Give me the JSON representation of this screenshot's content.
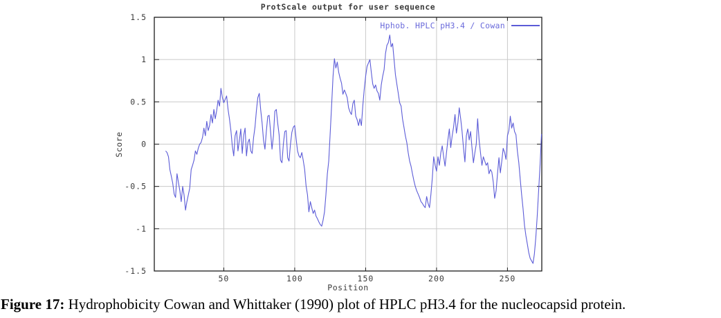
{
  "title": "ProtScale output for user sequence",
  "legend_label": "Hphob. HPLC pH3.4 / Cowan",
  "caption": {
    "label": "Figure 17:",
    "text": " Hydrophobicity Cowan and Whittaker (1990) plot of HPLC pH3.4 for the nucleocapsid protein."
  },
  "colors": {
    "line": "#5b5bd7",
    "legend_text": "#6b6bdb",
    "grid": "#c9c9c9",
    "border": "#1a1a1a",
    "tick_text": "#3b3b3b"
  },
  "chart_data": {
    "type": "line",
    "title": "ProtScale output for user sequence",
    "xlabel": "Position",
    "ylabel": "Score",
    "xlim": [
      1,
      274.2
    ],
    "ylim": [
      -1.5,
      1.5
    ],
    "grid": true,
    "legend_position": "top-right-inside",
    "x_ticks": [
      {
        "v": 50,
        "label": "50"
      },
      {
        "v": 100,
        "label": "100"
      },
      {
        "v": 150,
        "label": "150"
      },
      {
        "v": 200,
        "label": "200"
      },
      {
        "v": 250,
        "label": "250"
      }
    ],
    "y_ticks": [
      {
        "v": 1.5,
        "label": "1.5"
      },
      {
        "v": 1,
        "label": "1"
      },
      {
        "v": 0.5,
        "label": "0.5"
      },
      {
        "v": 0,
        "label": "0"
      },
      {
        "v": -0.5,
        "label": "-0.5"
      },
      {
        "v": -1,
        "label": "-1"
      },
      {
        "v": -1.5,
        "label": "-1.5"
      }
    ],
    "series": [
      {
        "name": "Hphob. HPLC pH3.4 / Cowan",
        "color": "#5b5bd7",
        "points": [
          [
            9,
            -0.08
          ],
          [
            10,
            -0.1
          ],
          [
            11,
            -0.15
          ],
          [
            12,
            -0.3
          ],
          [
            13,
            -0.38
          ],
          [
            14,
            -0.46
          ],
          [
            15,
            -0.59
          ],
          [
            16,
            -0.63
          ],
          [
            17,
            -0.35
          ],
          [
            18,
            -0.45
          ],
          [
            19,
            -0.55
          ],
          [
            20,
            -0.68
          ],
          [
            21,
            -0.5
          ],
          [
            22,
            -0.6
          ],
          [
            23,
            -0.78
          ],
          [
            24,
            -0.68
          ],
          [
            25,
            -0.6
          ],
          [
            26,
            -0.52
          ],
          [
            27,
            -0.3
          ],
          [
            28,
            -0.25
          ],
          [
            29,
            -0.19
          ],
          [
            30,
            -0.08
          ],
          [
            31,
            -0.12
          ],
          [
            32,
            -0.05
          ],
          [
            33,
            0
          ],
          [
            34,
            0.02
          ],
          [
            35,
            0.08
          ],
          [
            36,
            0.19
          ],
          [
            37,
            0.1
          ],
          [
            38,
            0.27
          ],
          [
            39,
            0.16
          ],
          [
            40,
            0.22
          ],
          [
            41,
            0.35
          ],
          [
            42,
            0.25
          ],
          [
            43,
            0.41
          ],
          [
            44,
            0.3
          ],
          [
            45,
            0.4
          ],
          [
            46,
            0.52
          ],
          [
            47,
            0.45
          ],
          [
            48,
            0.66
          ],
          [
            49,
            0.55
          ],
          [
            50,
            0.49
          ],
          [
            51,
            0.53
          ],
          [
            52,
            0.57
          ],
          [
            53,
            0.41
          ],
          [
            54,
            0.3
          ],
          [
            55,
            0.16
          ],
          [
            56,
            -0.02
          ],
          [
            57,
            -0.14
          ],
          [
            58,
            0.1
          ],
          [
            59,
            0.16
          ],
          [
            60,
            -0.08
          ],
          [
            61,
            0.05
          ],
          [
            62,
            0.18
          ],
          [
            63,
            -0.11
          ],
          [
            64,
            0.1
          ],
          [
            65,
            0.19
          ],
          [
            66,
            -0.14
          ],
          [
            67,
            0.02
          ],
          [
            68,
            0.06
          ],
          [
            69,
            -0.08
          ],
          [
            70,
            -0.11
          ],
          [
            71,
            0.08
          ],
          [
            72,
            0.2
          ],
          [
            73,
            0.4
          ],
          [
            74,
            0.55
          ],
          [
            75,
            0.6
          ],
          [
            76,
            0.41
          ],
          [
            77,
            0.25
          ],
          [
            78,
            0.05
          ],
          [
            79,
            -0.06
          ],
          [
            80,
            0.15
          ],
          [
            81,
            0.33
          ],
          [
            82,
            0.34
          ],
          [
            83,
            0.14
          ],
          [
            84,
            -0.06
          ],
          [
            85,
            0.1
          ],
          [
            86,
            0.39
          ],
          [
            87,
            0.41
          ],
          [
            88,
            0.25
          ],
          [
            89,
            0.11
          ],
          [
            90,
            -0.19
          ],
          [
            91,
            -0.22
          ],
          [
            92,
            0
          ],
          [
            93,
            0.15
          ],
          [
            94,
            0.16
          ],
          [
            95,
            -0.16
          ],
          [
            96,
            -0.2
          ],
          [
            97,
            0
          ],
          [
            98,
            0.14
          ],
          [
            99,
            0.2
          ],
          [
            100,
            0.22
          ],
          [
            101,
            0.06
          ],
          [
            102,
            -0.08
          ],
          [
            103,
            -0.14
          ],
          [
            104,
            -0.16
          ],
          [
            105,
            -0.1
          ],
          [
            106,
            -0.19
          ],
          [
            107,
            -0.3
          ],
          [
            108,
            -0.49
          ],
          [
            109,
            -0.6
          ],
          [
            110,
            -0.8
          ],
          [
            111,
            -0.68
          ],
          [
            112,
            -0.75
          ],
          [
            113,
            -0.82
          ],
          [
            114,
            -0.78
          ],
          [
            115,
            -0.85
          ],
          [
            116,
            -0.88
          ],
          [
            117,
            -0.92
          ],
          [
            118,
            -0.95
          ],
          [
            119,
            -0.97
          ],
          [
            120,
            -0.9
          ],
          [
            121,
            -0.8
          ],
          [
            122,
            -0.6
          ],
          [
            123,
            -0.35
          ],
          [
            124,
            -0.2
          ],
          [
            125,
            0.13
          ],
          [
            126,
            0.45
          ],
          [
            127,
            0.8
          ],
          [
            128,
            1.01
          ],
          [
            129,
            0.9
          ],
          [
            130,
            0.97
          ],
          [
            131,
            0.85
          ],
          [
            132,
            0.78
          ],
          [
            133,
            0.72
          ],
          [
            134,
            0.59
          ],
          [
            135,
            0.64
          ],
          [
            136,
            0.6
          ],
          [
            137,
            0.55
          ],
          [
            138,
            0.43
          ],
          [
            139,
            0.38
          ],
          [
            140,
            0.35
          ],
          [
            141,
            0.48
          ],
          [
            142,
            0.52
          ],
          [
            143,
            0.33
          ],
          [
            144,
            0.29
          ],
          [
            145,
            0.22
          ],
          [
            146,
            0.3
          ],
          [
            147,
            0.22
          ],
          [
            148,
            0.45
          ],
          [
            149,
            0.65
          ],
          [
            150,
            0.8
          ],
          [
            151,
            0.92
          ],
          [
            152,
            0.96
          ],
          [
            153,
            1
          ],
          [
            154,
            0.85
          ],
          [
            155,
            0.71
          ],
          [
            156,
            0.66
          ],
          [
            157,
            0.7
          ],
          [
            158,
            0.63
          ],
          [
            159,
            0.6
          ],
          [
            160,
            0.52
          ],
          [
            161,
            0.7
          ],
          [
            162,
            0.8
          ],
          [
            163,
            0.88
          ],
          [
            164,
            1.07
          ],
          [
            165,
            1.17
          ],
          [
            166,
            1.2
          ],
          [
            167,
            1.29
          ],
          [
            168,
            1.15
          ],
          [
            169,
            1.19
          ],
          [
            170,
            1.01
          ],
          [
            171,
            0.82
          ],
          [
            172,
            0.71
          ],
          [
            173,
            0.6
          ],
          [
            174,
            0.49
          ],
          [
            175,
            0.45
          ],
          [
            176,
            0.3
          ],
          [
            177,
            0.2
          ],
          [
            178,
            0.1
          ],
          [
            179,
            0.02
          ],
          [
            180,
            -0.1
          ],
          [
            181,
            -0.2
          ],
          [
            182,
            -0.26
          ],
          [
            183,
            -0.35
          ],
          [
            184,
            -0.43
          ],
          [
            185,
            -0.5
          ],
          [
            186,
            -0.55
          ],
          [
            187,
            -0.59
          ],
          [
            188,
            -0.63
          ],
          [
            189,
            -0.68
          ],
          [
            190,
            -0.7
          ],
          [
            191,
            -0.73
          ],
          [
            192,
            -0.75
          ],
          [
            193,
            -0.62
          ],
          [
            194,
            -0.7
          ],
          [
            195,
            -0.75
          ],
          [
            196,
            -0.6
          ],
          [
            197,
            -0.4
          ],
          [
            198,
            -0.15
          ],
          [
            199,
            -0.25
          ],
          [
            200,
            -0.32
          ],
          [
            201,
            -0.15
          ],
          [
            202,
            -0.25
          ],
          [
            203,
            -0.1
          ],
          [
            204,
            -0.02
          ],
          [
            205,
            -0.15
          ],
          [
            206,
            -0.26
          ],
          [
            207,
            -0.1
          ],
          [
            208,
            0.05
          ],
          [
            209,
            0.18
          ],
          [
            210,
            -0.04
          ],
          [
            211,
            0.1
          ],
          [
            212,
            0.2
          ],
          [
            213,
            0.35
          ],
          [
            214,
            0.13
          ],
          [
            215,
            0.25
          ],
          [
            216,
            0.43
          ],
          [
            217,
            0.3
          ],
          [
            218,
            0.15
          ],
          [
            219,
            -0.05
          ],
          [
            220,
            -0.21
          ],
          [
            221,
            0.1
          ],
          [
            222,
            0.18
          ],
          [
            223,
            0.05
          ],
          [
            224,
            0.15
          ],
          [
            225,
            -0.05
          ],
          [
            226,
            -0.22
          ],
          [
            227,
            -0.1
          ],
          [
            228,
            0
          ],
          [
            229,
            0.3
          ],
          [
            230,
            0.05
          ],
          [
            231,
            -0.1
          ],
          [
            232,
            -0.25
          ],
          [
            233,
            -0.15
          ],
          [
            234,
            -0.2
          ],
          [
            235,
            -0.25
          ],
          [
            236,
            -0.22
          ],
          [
            237,
            -0.35
          ],
          [
            238,
            -0.3
          ],
          [
            239,
            -0.33
          ],
          [
            240,
            -0.45
          ],
          [
            241,
            -0.64
          ],
          [
            242,
            -0.55
          ],
          [
            243,
            -0.35
          ],
          [
            244,
            -0.16
          ],
          [
            245,
            -0.34
          ],
          [
            246,
            -0.2
          ],
          [
            247,
            -0.05
          ],
          [
            248,
            -0.1
          ],
          [
            249,
            -0.18
          ],
          [
            250,
            0.1
          ],
          [
            251,
            0.16
          ],
          [
            252,
            0.33
          ],
          [
            253,
            0.19
          ],
          [
            254,
            0.25
          ],
          [
            255,
            0.15
          ],
          [
            256,
            0.11
          ],
          [
            257,
            -0.08
          ],
          [
            258,
            -0.22
          ],
          [
            259,
            -0.41
          ],
          [
            260,
            -0.6
          ],
          [
            261,
            -0.76
          ],
          [
            262,
            -0.96
          ],
          [
            263,
            -1.08
          ],
          [
            264,
            -1.18
          ],
          [
            265,
            -1.28
          ],
          [
            266,
            -1.35
          ],
          [
            267,
            -1.38
          ],
          [
            268,
            -1.41
          ],
          [
            269,
            -1.3
          ],
          [
            270,
            -1.1
          ],
          [
            271,
            -0.85
          ],
          [
            272,
            -0.54
          ],
          [
            273,
            -0.25
          ],
          [
            274,
            0.12
          ]
        ]
      }
    ]
  }
}
